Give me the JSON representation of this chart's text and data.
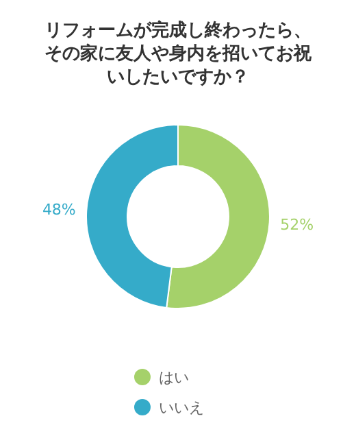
{
  "chart_data": {
    "type": "donut",
    "title": "リフォームが完成し終わったら、その家に友人や身内を招いてお祝いしたいですか？",
    "categories": [
      "はい",
      "いいえ"
    ],
    "values": [
      52,
      48
    ],
    "colors": [
      "#a5d16a",
      "#35abc9"
    ],
    "value_labels": [
      "52%",
      "48%"
    ],
    "legend": "bottom"
  }
}
